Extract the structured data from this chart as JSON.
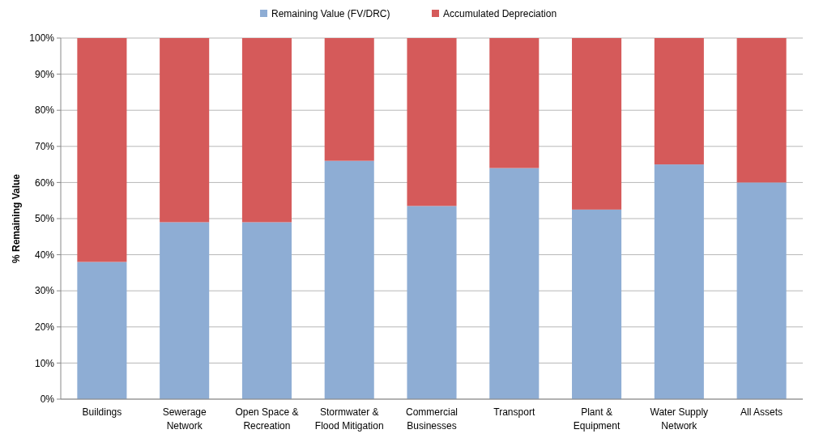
{
  "chart_data": {
    "type": "bar",
    "stacked": true,
    "ylabel": "% Remaining Value",
    "categories": [
      "Buildings",
      "Sewerage Network",
      "Open Space & Recreation",
      "Stormwater & Flood Mitigation",
      "Commercial Businesses",
      "Transport",
      "Plant & Equipment",
      "Water Supply Network",
      "All Assets"
    ],
    "series": [
      {
        "name": "Remaining Value (FV/DRC)",
        "color": "#8eadd4",
        "values": [
          38,
          49,
          49,
          66,
          53.5,
          64,
          52.5,
          65,
          60
        ]
      },
      {
        "name": "Accumulated Depreciation",
        "color": "#d55a5a",
        "values": [
          62,
          51,
          51,
          34,
          46.5,
          36,
          47.5,
          35,
          40
        ]
      }
    ],
    "ylim": [
      0,
      100
    ],
    "yticks": [
      {
        "value": 0,
        "label": "0%"
      },
      {
        "value": 10,
        "label": "10%"
      },
      {
        "value": 20,
        "label": "20%"
      },
      {
        "value": 30,
        "label": "30%"
      },
      {
        "value": 40,
        "label": "40%"
      },
      {
        "value": 50,
        "label": "50%"
      },
      {
        "value": 60,
        "label": "60%"
      },
      {
        "value": 70,
        "label": "70%"
      },
      {
        "value": 80,
        "label": "80%"
      },
      {
        "value": 90,
        "label": "90%"
      },
      {
        "value": 100,
        "label": "100%"
      }
    ],
    "grid": "y",
    "legend": "top"
  }
}
